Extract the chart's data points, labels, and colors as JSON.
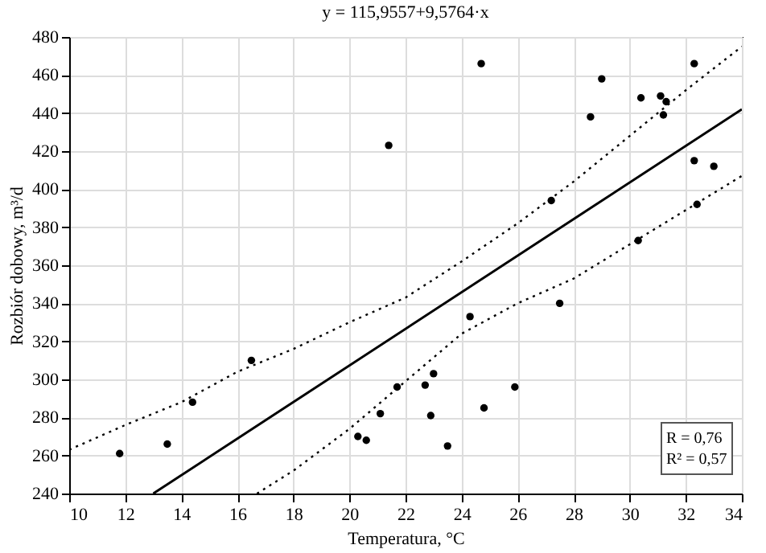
{
  "chart_data": {
    "type": "scatter",
    "title": "y = 115,9557+9,5764·x",
    "xlabel": "Temperatura, °C",
    "ylabel": "Rozbiór dobowy, m³/d",
    "xlim": [
      10,
      34
    ],
    "xticks": [
      10,
      12,
      14,
      16,
      18,
      20,
      22,
      24,
      26,
      28,
      30,
      32,
      34
    ],
    "ylim": [
      240,
      480
    ],
    "yticks": [
      240,
      260,
      280,
      300,
      320,
      340,
      360,
      380,
      400,
      420,
      440,
      460,
      480
    ],
    "grid": true,
    "series": [
      {
        "marker": "circle",
        "color": "#000000",
        "x": [
          11.8,
          13.5,
          14.4,
          16.5,
          20.3,
          20.6,
          21.1,
          21.4,
          21.7,
          22.7,
          22.9,
          23.0,
          23.5,
          24.3,
          24.7,
          24.8,
          25.9,
          27.2,
          27.5,
          28.6,
          29.0,
          30.3,
          30.4,
          31.1,
          31.2,
          31.3,
          32.3,
          32.3,
          32.4,
          33.0
        ],
        "values": [
          261,
          266,
          288,
          310,
          270,
          268,
          282,
          423,
          296,
          297,
          281,
          303,
          265,
          333,
          466,
          285,
          296,
          394,
          340,
          438,
          458,
          373,
          448,
          449,
          439,
          446,
          466,
          415,
          392,
          412
        ]
      },
      {
        "type": "line",
        "color": "#000000",
        "line_style": "solid",
        "x": [
          13,
          34
        ],
        "values": [
          240,
          442
        ]
      },
      {
        "type": "line",
        "color": "#000000",
        "line_style": "dotted",
        "x": [
          10,
          12,
          14,
          16,
          18,
          20,
          22,
          24,
          26,
          28,
          30,
          32,
          34
        ],
        "values": [
          263,
          276,
          288,
          304,
          316,
          330,
          343,
          362,
          382,
          404,
          428,
          452,
          475
        ]
      },
      {
        "type": "line",
        "color": "#000000",
        "line_style": "dotted",
        "x": [
          16.7,
          18,
          20,
          22,
          24,
          26,
          28,
          30,
          32,
          34
        ],
        "values": [
          240,
          252,
          274,
          299,
          324,
          340,
          353,
          371,
          389,
          407
        ]
      }
    ],
    "annotations": [
      "R = 0,76",
      "R² = 0,57"
    ]
  }
}
